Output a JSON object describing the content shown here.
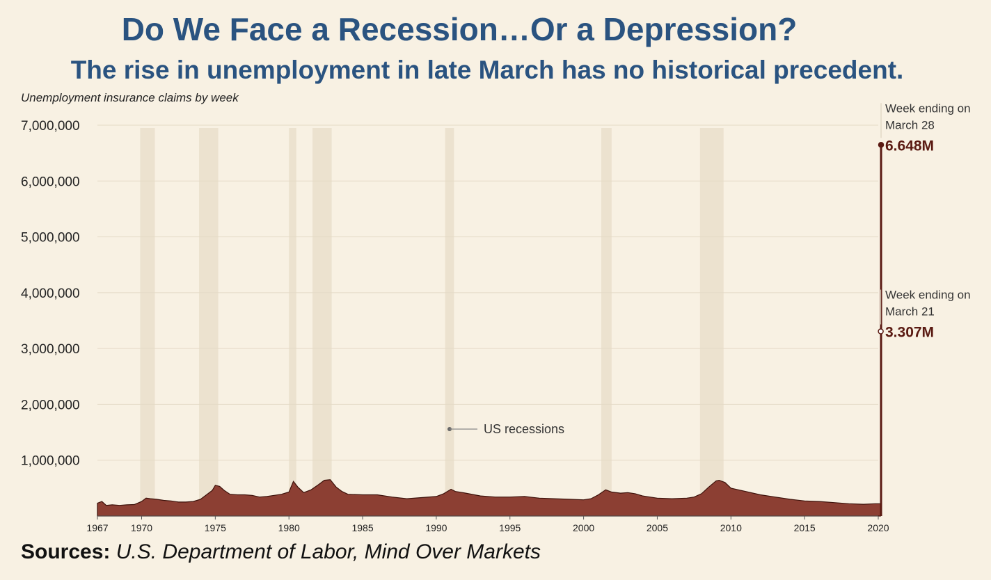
{
  "header": {
    "title": "Do We Face a Recession…Or a Depression?",
    "subtitle": "The rise in unemployment in late March has no historical precedent."
  },
  "source": {
    "label": "Sources:",
    "text": "U.S. Department of Labor, Mind Over Markets"
  },
  "colors": {
    "title": "#2a5380",
    "area_fill": "#8c3f33",
    "area_stroke": "#3d120b",
    "spike": "#5a1a12",
    "recession": "#ece2cf",
    "background": "#f8f1e3",
    "annotation_value": "#5a1a12"
  },
  "chart_data": {
    "type": "area",
    "ylabel": "Unemployment insurance claims by week",
    "ylim": [
      0,
      7000000
    ],
    "xlim": [
      1967,
      2020
    ],
    "y_ticks": [
      {
        "value": 1000000,
        "label": "1,000,000"
      },
      {
        "value": 2000000,
        "label": "2,000,000"
      },
      {
        "value": 3000000,
        "label": "3,000,000"
      },
      {
        "value": 4000000,
        "label": "4,000,000"
      },
      {
        "value": 5000000,
        "label": "5,000,000"
      },
      {
        "value": 6000000,
        "label": "6,000,000"
      },
      {
        "value": 7000000,
        "label": "7,000,000"
      }
    ],
    "x_ticks": [
      {
        "value": 1967,
        "label": "1967"
      },
      {
        "value": 1970,
        "label": "1970"
      },
      {
        "value": 1975,
        "label": "1975"
      },
      {
        "value": 1980,
        "label": "1980"
      },
      {
        "value": 1985,
        "label": "1985"
      },
      {
        "value": 1990,
        "label": "1990"
      },
      {
        "value": 1995,
        "label": "1995"
      },
      {
        "value": 2000,
        "label": "2000"
      },
      {
        "value": 2005,
        "label": "2005"
      },
      {
        "value": 2010,
        "label": "2010"
      },
      {
        "value": 2015,
        "label": "2015"
      },
      {
        "value": 2020,
        "label": "2020"
      }
    ],
    "grid": true,
    "recessions_label": "US recessions",
    "recessions": [
      [
        1969.9,
        1970.9
      ],
      [
        1973.9,
        1975.2
      ],
      [
        1980.0,
        1980.5
      ],
      [
        1981.6,
        1982.9
      ],
      [
        1990.6,
        1991.2
      ],
      [
        2001.2,
        2001.9
      ],
      [
        2007.9,
        2009.5
      ]
    ],
    "series": [
      {
        "x": [
          1967.0,
          1967.3,
          1967.6,
          1968.0,
          1968.5,
          1969.0,
          1969.5,
          1970.0,
          1970.3,
          1970.6,
          1971.0,
          1971.5,
          1972.0,
          1972.5,
          1973.0,
          1973.5,
          1974.0,
          1974.4,
          1974.8,
          1975.0,
          1975.3,
          1975.6,
          1976.0,
          1976.5,
          1977.0,
          1977.5,
          1978.0,
          1978.5,
          1979.0,
          1979.5,
          1980.0,
          1980.3,
          1980.6,
          1981.0,
          1981.5,
          1982.0,
          1982.4,
          1982.8,
          1983.2,
          1983.6,
          1984.0,
          1985.0,
          1986.0,
          1987.0,
          1988.0,
          1989.0,
          1990.0,
          1990.5,
          1991.0,
          1991.3,
          1991.8,
          1992.0,
          1993.0,
          1994.0,
          1995.0,
          1996.0,
          1997.0,
          1998.0,
          1999.0,
          2000.0,
          2000.5,
          2001.0,
          2001.5,
          2001.9,
          2002.5,
          2003.0,
          2003.5,
          2004.0,
          2005.0,
          2006.0,
          2007.0,
          2007.5,
          2008.0,
          2008.5,
          2009.0,
          2009.2,
          2009.6,
          2010.0,
          2011.0,
          2012.0,
          2013.0,
          2014.0,
          2015.0,
          2016.0,
          2017.0,
          2018.0,
          2019.0,
          2019.8,
          2020.15,
          2020.17,
          2020.19
        ],
        "values": [
          230000,
          260000,
          190000,
          200000,
          190000,
          200000,
          205000,
          260000,
          320000,
          310000,
          300000,
          280000,
          270000,
          250000,
          250000,
          260000,
          300000,
          380000,
          460000,
          550000,
          530000,
          460000,
          390000,
          380000,
          380000,
          370000,
          340000,
          350000,
          370000,
          390000,
          430000,
          620000,
          520000,
          420000,
          470000,
          560000,
          640000,
          650000,
          520000,
          440000,
          390000,
          380000,
          380000,
          340000,
          310000,
          330000,
          350000,
          400000,
          480000,
          440000,
          420000,
          410000,
          360000,
          340000,
          340000,
          350000,
          320000,
          310000,
          300000,
          290000,
          310000,
          380000,
          470000,
          430000,
          410000,
          420000,
          400000,
          360000,
          320000,
          310000,
          320000,
          340000,
          400000,
          520000,
          630000,
          640000,
          600000,
          500000,
          440000,
          380000,
          340000,
          300000,
          270000,
          260000,
          240000,
          220000,
          210000,
          220000,
          220000,
          3307000,
          6648000
        ]
      }
    ],
    "annotations": [
      {
        "line1": "Week ending on",
        "line2": "March 28",
        "value_label": "6.648M",
        "x": 2020.19,
        "y": 6648000
      },
      {
        "line1": "Week ending on",
        "line2": "March 21",
        "value_label": "3.307M",
        "x": 2020.17,
        "y": 3307000
      }
    ]
  }
}
